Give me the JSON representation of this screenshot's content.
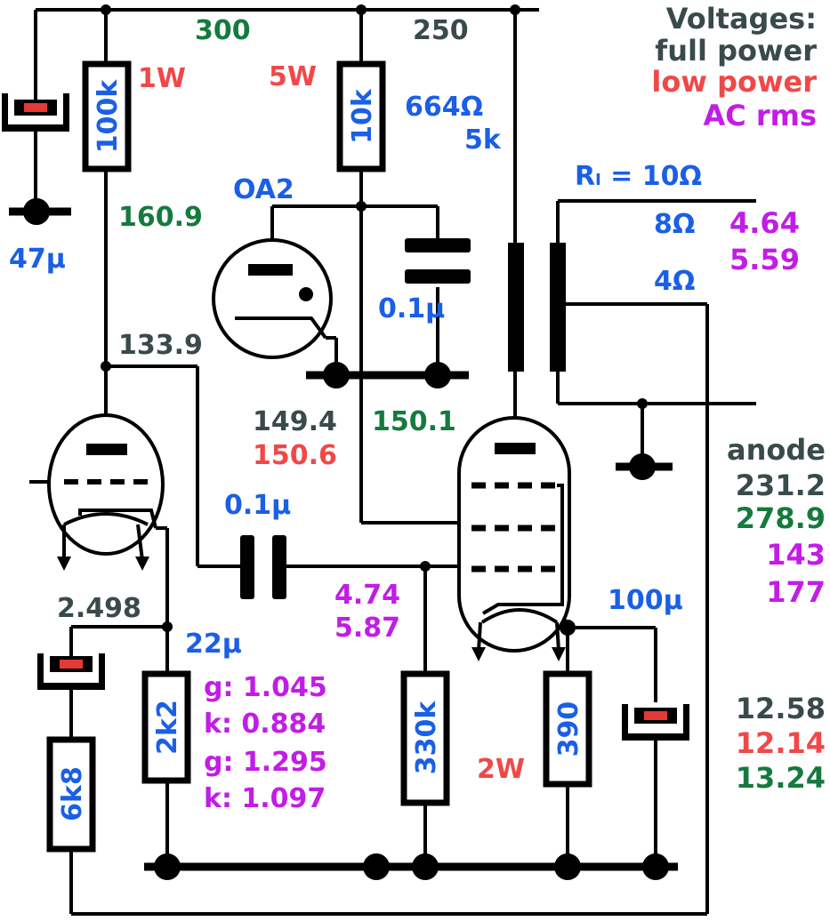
{
  "colors": {
    "blue": "#1a5fe6",
    "green": "#157a3e",
    "gray": "#3a4a4a",
    "red": "#f04848",
    "purple": "#c21de6",
    "cap_plate_red": "#e53935"
  },
  "legend": {
    "title": "Voltages:",
    "full": "full power",
    "low": "low power",
    "ac": "AC rms"
  },
  "rails": {
    "v300": "300",
    "v250": "250"
  },
  "components": {
    "r_100k": "100k",
    "r_100k_power": "1W",
    "r_10k": "10k",
    "r_10k_power": "5W",
    "c_47u": "47µ",
    "oa2": "OA2",
    "c_01u_top": "0.1µ",
    "c_01u_mid": "0.1µ",
    "c_22u": "22µ",
    "r_2k2": "2k2",
    "r_6k8": "6k8",
    "r_330k": "330k",
    "r_390": "390",
    "r_390_power": "2W",
    "c_100u": "100µ",
    "xfmr_primary_z": "664Ω",
    "xfmr_primary_k": "5k",
    "rl": "Rₗ = 10Ω",
    "tap8": "8Ω",
    "tap4": "4Ω"
  },
  "voltages": {
    "v160": "160.9",
    "v133": "133.9",
    "v149": "149.4",
    "v150_6": "150.6",
    "v150_1": "150.1",
    "v2498": "2.498",
    "in_full": "4.74",
    "in_low": "5.87",
    "g1": "g: 1.045",
    "k1": "k: 0.884",
    "g2": "g: 1.295",
    "k2": "k: 1.097",
    "out8_full": "4.64",
    "out8_low": "5.59",
    "anode_label": "anode",
    "anode_full": "231.2",
    "anode_low": "278.9",
    "anode_ac1": "143",
    "anode_ac2": "177",
    "cathode_full": "12.58",
    "cathode_low": "12.14",
    "cathode_alt": "13.24"
  },
  "icons": [
    "ground-symbol-icon",
    "vacuum-tube-icon",
    "pentode-tube-icon",
    "regulator-tube-icon"
  ]
}
